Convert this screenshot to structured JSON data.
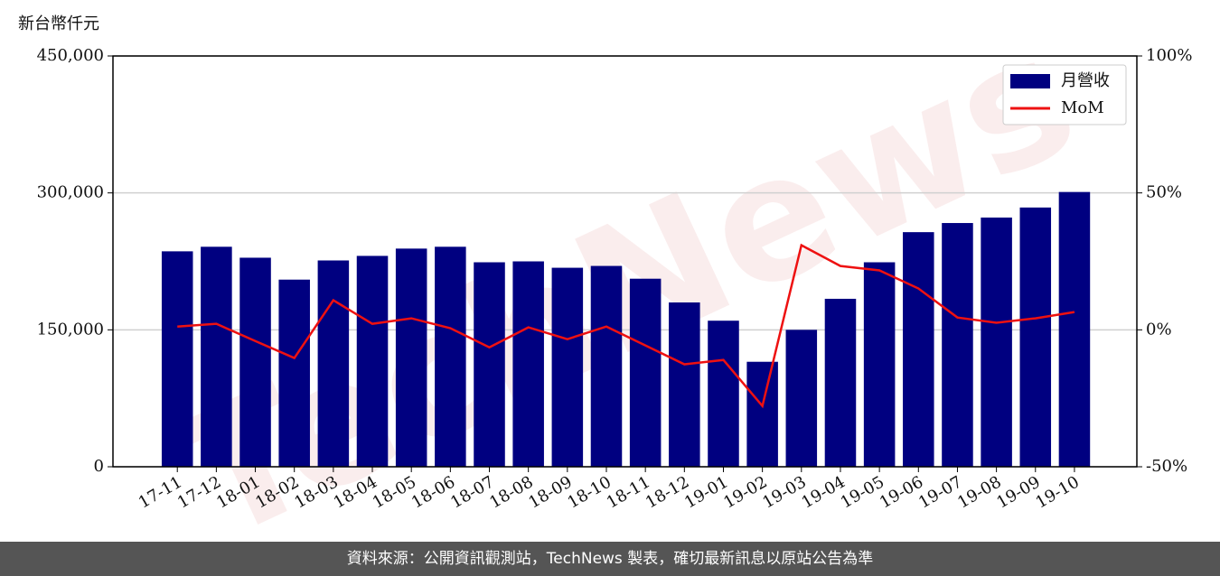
{
  "chart_data": {
    "type": "bar_line",
    "y_label": "新台幣仟元",
    "watermark": "TechNews",
    "footer": "資料來源：公開資訊觀測站，TechNews 製表，確切最新訊息以原站公告為準",
    "categories": [
      "17-11",
      "17-12",
      "18-01",
      "18-02",
      "18-03",
      "18-04",
      "18-05",
      "18-06",
      "18-07",
      "18-08",
      "18-09",
      "18-10",
      "18-11",
      "18-12",
      "19-01",
      "19-02",
      "19-03",
      "19-04",
      "19-05",
      "19-06",
      "19-07",
      "19-08",
      "19-09",
      "19-10"
    ],
    "series": [
      {
        "name": "月營收",
        "type": "bar",
        "color": "#000080",
        "values": [
          236000,
          241000,
          229000,
          205000,
          226000,
          231000,
          239000,
          241000,
          224000,
          225000,
          218000,
          220000,
          206000,
          180000,
          160000,
          115000,
          150000,
          184000,
          224000,
          257000,
          267000,
          273000,
          284000,
          301000
        ]
      },
      {
        "name": "MoM",
        "type": "line",
        "axis": "y2",
        "color": "#ee1111",
        "values": [
          1.2,
          2.2,
          -4.1,
          -10.3,
          10.8,
          2.2,
          4.2,
          0.6,
          -6.4,
          0.9,
          -3.4,
          1.2,
          -5.7,
          -12.6,
          -11.0,
          -27.8,
          30.9,
          23.3,
          21.7,
          15.1,
          4.5,
          2.6,
          4.2,
          6.5
        ]
      }
    ],
    "ylim": [
      0,
      450000
    ],
    "yticks": [
      0,
      {
        "value": 150000,
        "label": "150,000"
      },
      {
        "value": 300000,
        "label": "300,000"
      },
      {
        "value": 450000,
        "label": "450,000"
      }
    ],
    "y2lim": [
      -50,
      100
    ],
    "y2ticks": [
      {
        "value": -50,
        "label": "-50%"
      },
      {
        "value": 0,
        "label": "0%"
      },
      {
        "value": 50,
        "label": "50%"
      },
      {
        "value": 100,
        "label": "100%"
      }
    ],
    "grid": true,
    "legend": "upper right"
  }
}
